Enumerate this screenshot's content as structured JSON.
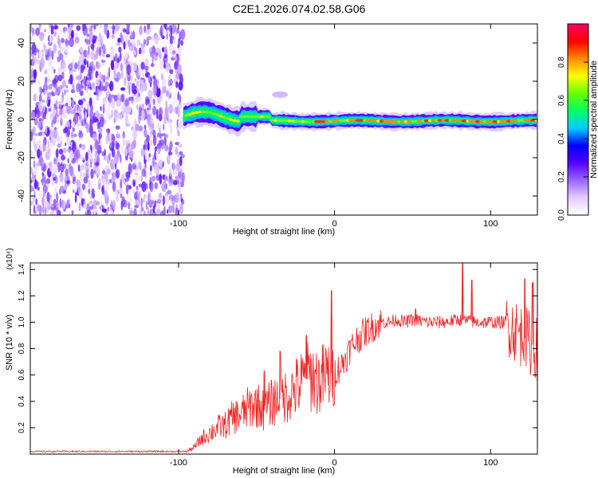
{
  "title": "C2E1.2026.074.02.58.G06",
  "chart_data": [
    {
      "type": "heatmap",
      "name": "spectrogram",
      "xlabel": "Height of straight line (km)",
      "ylabel": "Frequency (Hz)",
      "xlim": [
        -195,
        130
      ],
      "ylim": [
        -50,
        50
      ],
      "xticks": [
        {
          "v": -100,
          "label": "-100"
        },
        {
          "v": 0,
          "label": "0"
        },
        {
          "v": 100,
          "label": "100"
        }
      ],
      "yticks": [
        {
          "v": 40,
          "label": "40"
        },
        {
          "v": 20,
          "label": "20"
        },
        {
          "v": 0,
          "label": "0"
        },
        {
          "v": -20,
          "label": "-20"
        },
        {
          "v": -40,
          "label": "-40"
        }
      ],
      "noise_region_x": [
        -195,
        -97
      ],
      "signal_start_x": -97,
      "signal_freq_hz": 0,
      "colorbar": {
        "label": "Normalized spectral amplitude",
        "range": [
          0,
          1
        ],
        "ticks": [
          {
            "v": 0.0,
            "label": "0.0"
          },
          {
            "v": 0.2,
            "label": "0.2"
          },
          {
            "v": 0.4,
            "label": "0.4"
          },
          {
            "v": 0.6,
            "label": "0.6"
          },
          {
            "v": 0.8,
            "label": "0.8"
          }
        ],
        "colors": [
          "#ffffff",
          "#e6ccff",
          "#9966ff",
          "#5500ff",
          "#0000ff",
          "#00ccff",
          "#00ff66",
          "#66ff00",
          "#ffff00",
          "#ff8800",
          "#ff0000",
          "#ff0066"
        ]
      }
    },
    {
      "type": "line",
      "name": "snr",
      "xlabel": "Height of straight line (km)",
      "ylabel": "SNR (10 * v/v)",
      "yscale_label": "(x10⁴)",
      "xlim": [
        -195,
        130
      ],
      "ylim": [
        0,
        1.45
      ],
      "xticks": [
        {
          "v": -100,
          "label": "-100"
        },
        {
          "v": 0,
          "label": "0"
        },
        {
          "v": 100,
          "label": "100"
        }
      ],
      "yticks": [
        {
          "v": 0.2,
          "label": "0.2"
        },
        {
          "v": 0.4,
          "label": "0.4"
        },
        {
          "v": 0.6,
          "label": "0.6"
        },
        {
          "v": 0.8,
          "label": "0.8"
        },
        {
          "v": 1.0,
          "label": "1.0"
        },
        {
          "v": 1.2,
          "label": "1.2"
        },
        {
          "v": 1.4,
          "label": "1.4"
        }
      ],
      "color": "#ee2222",
      "series": [
        {
          "name": "SNR",
          "x": [
            -195,
            -150,
            -110,
            -95,
            -90,
            -85,
            -80,
            -75,
            -70,
            -65,
            -60,
            -55,
            -50,
            -45,
            -40,
            -35,
            -30,
            -25,
            -20,
            -15,
            -10,
            -5,
            0,
            5,
            10,
            15,
            20,
            25,
            30,
            35,
            40,
            45,
            50,
            60,
            70,
            80,
            90,
            100,
            110,
            115,
            120,
            125,
            130
          ],
          "values": [
            0.02,
            0.02,
            0.02,
            0.02,
            0.05,
            0.12,
            0.16,
            0.2,
            0.22,
            0.28,
            0.3,
            0.35,
            0.38,
            0.33,
            0.4,
            0.42,
            0.45,
            0.5,
            0.55,
            0.6,
            0.55,
            0.6,
            0.62,
            0.68,
            0.8,
            0.88,
            0.93,
            0.97,
            1.0,
            1.0,
            1.02,
            1.0,
            1.02,
            1.0,
            1.0,
            1.02,
            1.0,
            1.0,
            1.0,
            0.95,
            0.9,
            0.85,
            0.8
          ]
        }
      ],
      "spikes": [
        {
          "x": -45,
          "y": 0.63
        },
        {
          "x": -35,
          "y": 0.78
        },
        {
          "x": -18,
          "y": 0.9
        },
        {
          "x": -2,
          "y": 1.24
        },
        {
          "x": 52,
          "y": 1.1
        },
        {
          "x": 82,
          "y": 1.45
        },
        {
          "x": 88,
          "y": 1.32
        },
        {
          "x": 122,
          "y": 1.33
        },
        {
          "x": 127,
          "y": 1.3
        }
      ]
    }
  ]
}
